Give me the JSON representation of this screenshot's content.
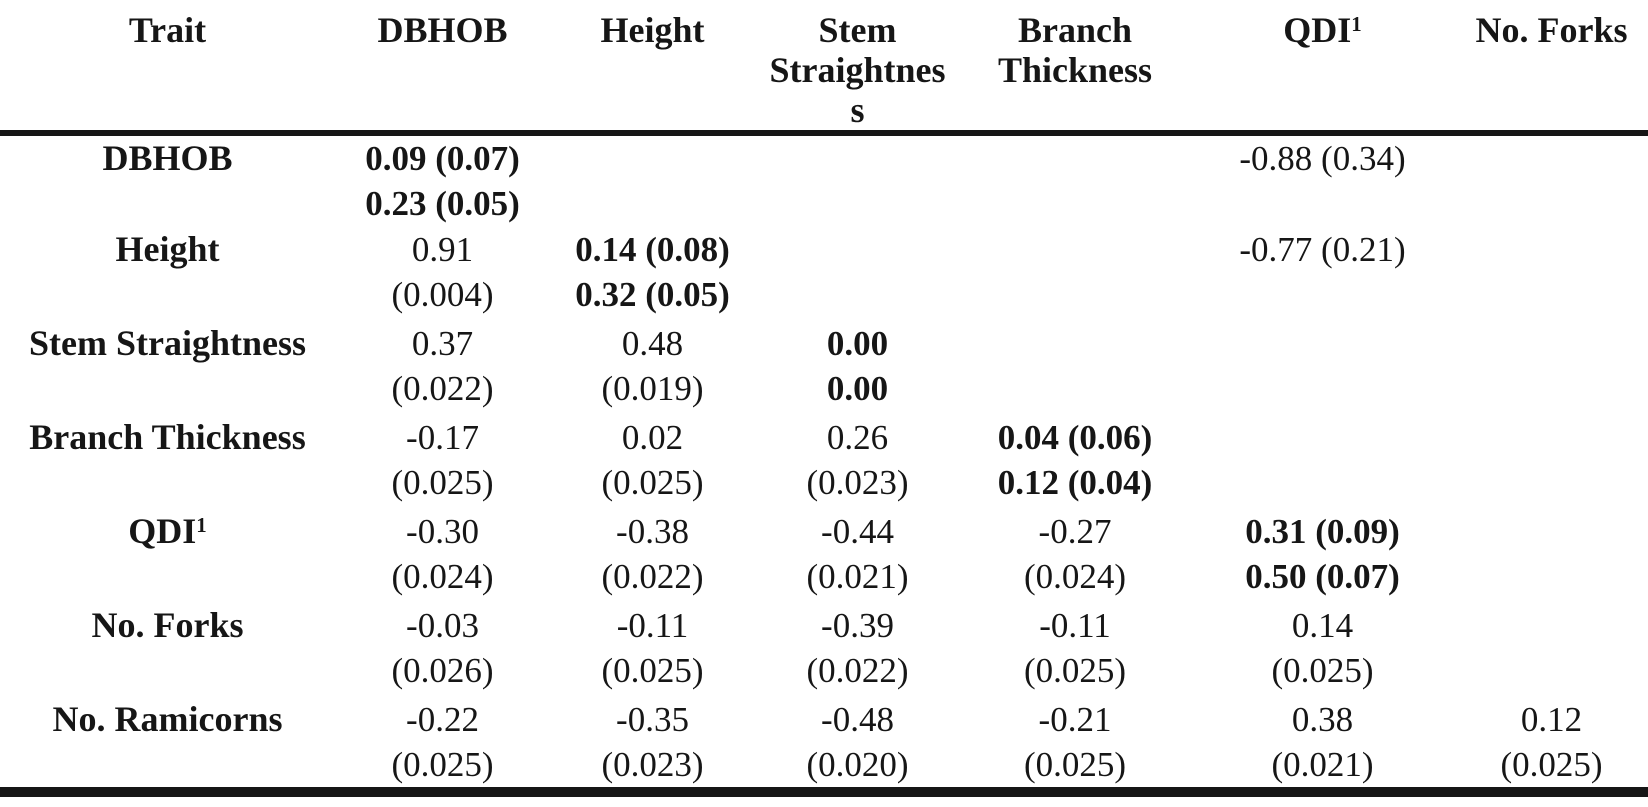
{
  "page": {
    "background": "#ffffff",
    "text_color": "#161616",
    "rule_color": "#161616"
  },
  "table": {
    "headers": [
      {
        "line1": "Trait"
      },
      {
        "line1": "DBHOB"
      },
      {
        "line1": "Height"
      },
      {
        "line1": "Stem",
        "line2": "Straightnes",
        "line3": "s"
      },
      {
        "line1": "Branch",
        "line2": "Thickness"
      },
      {
        "line1": "QDI",
        "sup": "1"
      },
      {
        "line1": "No. Forks"
      }
    ],
    "rows": [
      {
        "label": "DBHOB",
        "sup": "",
        "cells": [
          {
            "l1": "0.09 (0.07)",
            "l2": "0.23 (0.05)"
          },
          {
            "l1": "",
            "l2": ""
          },
          {
            "l1": "",
            "l2": ""
          },
          {
            "l1": "",
            "l2": ""
          },
          {
            "l1": "-0.88 (0.34)",
            "l2": ""
          },
          {
            "l1": "",
            "l2": ""
          }
        ]
      },
      {
        "label": "Height",
        "sup": "",
        "cells": [
          {
            "l1": "0.91",
            "l2": "(0.004)"
          },
          {
            "l1": "0.14 (0.08)",
            "l2": "0.32 (0.05)"
          },
          {
            "l1": "",
            "l2": ""
          },
          {
            "l1": "",
            "l2": ""
          },
          {
            "l1": "-0.77 (0.21)",
            "l2": ""
          },
          {
            "l1": "",
            "l2": ""
          }
        ]
      },
      {
        "label": "Stem Straightness",
        "sup": "",
        "cells": [
          {
            "l1": "0.37",
            "l2": "(0.022)"
          },
          {
            "l1": "0.48",
            "l2": "(0.019)"
          },
          {
            "l1": "0.00",
            "l2": "0.00"
          },
          {
            "l1": "",
            "l2": ""
          },
          {
            "l1": "",
            "l2": ""
          },
          {
            "l1": "",
            "l2": ""
          }
        ]
      },
      {
        "label": "Branch Thickness",
        "sup": "",
        "cells": [
          {
            "l1": "-0.17",
            "l2": "(0.025)"
          },
          {
            "l1": "0.02",
            "l2": "(0.025)"
          },
          {
            "l1": "0.26",
            "l2": "(0.023)"
          },
          {
            "l1": "0.04 (0.06)",
            "l2": "0.12 (0.04)"
          },
          {
            "l1": "",
            "l2": ""
          },
          {
            "l1": "",
            "l2": ""
          }
        ]
      },
      {
        "label": "QDI",
        "sup": "1",
        "cells": [
          {
            "l1": "-0.30",
            "l2": "(0.024)"
          },
          {
            "l1": "-0.38",
            "l2": "(0.022)"
          },
          {
            "l1": "-0.44",
            "l2": "(0.021)"
          },
          {
            "l1": "-0.27",
            "l2": "(0.024)"
          },
          {
            "l1": "0.31 (0.09)",
            "l2": "0.50 (0.07)"
          },
          {
            "l1": "",
            "l2": ""
          }
        ]
      },
      {
        "label": "No. Forks",
        "sup": "",
        "cells": [
          {
            "l1": "-0.03",
            "l2": "(0.026)"
          },
          {
            "l1": "-0.11",
            "l2": "(0.025)"
          },
          {
            "l1": "-0.39",
            "l2": "(0.022)"
          },
          {
            "l1": "-0.11",
            "l2": "(0.025)"
          },
          {
            "l1": "0.14",
            "l2": "(0.025)"
          },
          {
            "l1": "",
            "l2": ""
          }
        ]
      },
      {
        "label": "No. Ramicorns",
        "sup": "",
        "cells": [
          {
            "l1": "-0.22",
            "l2": "(0.025)"
          },
          {
            "l1": "-0.35",
            "l2": "(0.023)"
          },
          {
            "l1": "-0.48",
            "l2": "(0.020)"
          },
          {
            "l1": "-0.21",
            "l2": "(0.025)"
          },
          {
            "l1": "0.38",
            "l2": "(0.021)"
          },
          {
            "l1": "0.12",
            "l2": "(0.025)"
          }
        ]
      }
    ]
  }
}
